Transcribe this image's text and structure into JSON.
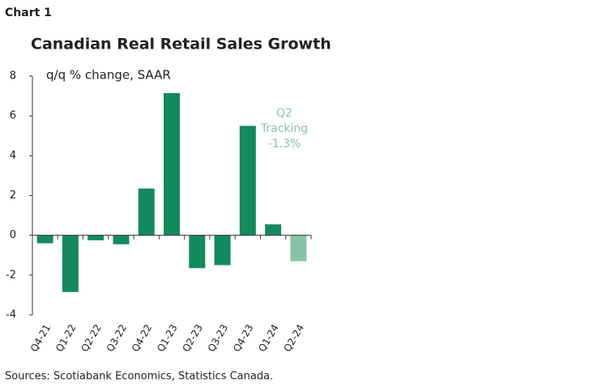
{
  "header": "Chart 1",
  "chart_data": {
    "type": "bar",
    "title": "Canadian Real Retail Sales Growth",
    "y_axis_label": "q/q % change, SAAR",
    "categories": [
      "Q4-21",
      "Q1-22",
      "Q2-22",
      "Q3-22",
      "Q4-22",
      "Q1-23",
      "Q2-23",
      "Q3-23",
      "Q4-23",
      "Q1-24",
      "Q2-24"
    ],
    "values": [
      -0.4,
      -2.85,
      -0.25,
      -0.45,
      2.35,
      7.15,
      -1.65,
      -1.5,
      5.5,
      0.55,
      -1.3
    ],
    "colors": [
      "#138a5e",
      "#138a5e",
      "#138a5e",
      "#138a5e",
      "#138a5e",
      "#138a5e",
      "#138a5e",
      "#138a5e",
      "#138a5e",
      "#138a5e",
      "#88c4a4"
    ],
    "ylim": [
      -4,
      8
    ],
    "yticks": [
      -4,
      -2,
      0,
      2,
      4,
      6,
      8
    ],
    "annotation": [
      "Q2",
      "Tracking",
      "-1.3%"
    ],
    "annotation_color": "#88c4a4",
    "source": "Sources: Scotiabank Economics, Statistics Canada."
  }
}
